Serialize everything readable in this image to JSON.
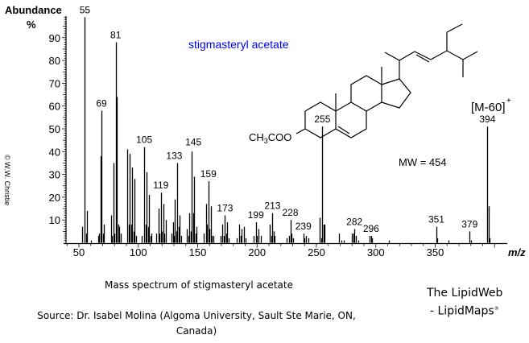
{
  "chart_data": {
    "type": "bar",
    "subtype": "mass-spectrum",
    "title": "stigmasteryl acetate",
    "xlabel": "m/z",
    "ylabel": "Abundance %",
    "xlim": [
      40,
      405
    ],
    "ylim": [
      0,
      100
    ],
    "x_ticks": [
      50,
      100,
      150,
      200,
      250,
      300,
      350
    ],
    "y_ticks": [
      10,
      20,
      30,
      40,
      50,
      60,
      70,
      80,
      90
    ],
    "grid": false,
    "peaks": [
      [
        53,
        7
      ],
      [
        55,
        99
      ],
      [
        56,
        4
      ],
      [
        57,
        14
      ],
      [
        60,
        1
      ],
      [
        66,
        3
      ],
      [
        67,
        4
      ],
      [
        68,
        38
      ],
      [
        69,
        58
      ],
      [
        70,
        4
      ],
      [
        71,
        8
      ],
      [
        77,
        12
      ],
      [
        78,
        3
      ],
      [
        79,
        35
      ],
      [
        80,
        4
      ],
      [
        81,
        88
      ],
      [
        82,
        64
      ],
      [
        83,
        8
      ],
      [
        84,
        7
      ],
      [
        85,
        4
      ],
      [
        91,
        41
      ],
      [
        92,
        8
      ],
      [
        93,
        39
      ],
      [
        94,
        8
      ],
      [
        95,
        33
      ],
      [
        96,
        5
      ],
      [
        97,
        28
      ],
      [
        98,
        3
      ],
      [
        103,
        3
      ],
      [
        105,
        42
      ],
      [
        106,
        8
      ],
      [
        107,
        31
      ],
      [
        108,
        7
      ],
      [
        109,
        21
      ],
      [
        110,
        3
      ],
      [
        111,
        4
      ],
      [
        115,
        4
      ],
      [
        117,
        15
      ],
      [
        118,
        4
      ],
      [
        119,
        22
      ],
      [
        120,
        5
      ],
      [
        121,
        17
      ],
      [
        122,
        4
      ],
      [
        123,
        10
      ],
      [
        128,
        4
      ],
      [
        129,
        9
      ],
      [
        130,
        3
      ],
      [
        131,
        19
      ],
      [
        132,
        5
      ],
      [
        133,
        35
      ],
      [
        134,
        7
      ],
      [
        135,
        12
      ],
      [
        136,
        3
      ],
      [
        141,
        6
      ],
      [
        142,
        3
      ],
      [
        143,
        13
      ],
      [
        144,
        5
      ],
      [
        145,
        40
      ],
      [
        146,
        13
      ],
      [
        147,
        29
      ],
      [
        148,
        4
      ],
      [
        149,
        7
      ],
      [
        155,
        4
      ],
      [
        157,
        17
      ],
      [
        158,
        8
      ],
      [
        159,
        27
      ],
      [
        160,
        6
      ],
      [
        161,
        16
      ],
      [
        162,
        3
      ],
      [
        163,
        3
      ],
      [
        169,
        3
      ],
      [
        171,
        8
      ],
      [
        172,
        3
      ],
      [
        173,
        12
      ],
      [
        174,
        4
      ],
      [
        175,
        9
      ],
      [
        176,
        2
      ],
      [
        183,
        2
      ],
      [
        185,
        8
      ],
      [
        186,
        3
      ],
      [
        187,
        6
      ],
      [
        189,
        7
      ],
      [
        190,
        2
      ],
      [
        197,
        3
      ],
      [
        199,
        9
      ],
      [
        200,
        3
      ],
      [
        201,
        6
      ],
      [
        203,
        3
      ],
      [
        211,
        8
      ],
      [
        212,
        3
      ],
      [
        213,
        13
      ],
      [
        214,
        5
      ],
      [
        215,
        3
      ],
      [
        225,
        2
      ],
      [
        227,
        3
      ],
      [
        228,
        10
      ],
      [
        229,
        4
      ],
      [
        230,
        2
      ],
      [
        239,
        4
      ],
      [
        240,
        2
      ],
      [
        241,
        3
      ],
      [
        243,
        2
      ],
      [
        253,
        11
      ],
      [
        254,
        2
      ],
      [
        255,
        51
      ],
      [
        256,
        8
      ],
      [
        257,
        8
      ],
      [
        269,
        4
      ],
      [
        271,
        1
      ],
      [
        273,
        1
      ],
      [
        280,
        4
      ],
      [
        281,
        4
      ],
      [
        282,
        6
      ],
      [
        283,
        3
      ],
      [
        285,
        1
      ],
      [
        295,
        3
      ],
      [
        296,
        3
      ],
      [
        297,
        2
      ],
      [
        311,
        1
      ],
      [
        351,
        7
      ],
      [
        352,
        2
      ],
      [
        361,
        1
      ],
      [
        379,
        5
      ],
      [
        380,
        1
      ],
      [
        394,
        51
      ],
      [
        395,
        16
      ],
      [
        396,
        2
      ]
    ],
    "labeled_peaks": [
      55,
      69,
      81,
      105,
      119,
      133,
      145,
      159,
      173,
      199,
      213,
      228,
      239,
      255,
      282,
      296,
      351,
      379,
      394
    ],
    "annotations": [
      {
        "text": "[M-60]",
        "superscript": "+",
        "at": 394
      },
      {
        "text": "MW = 454"
      },
      {
        "text": "CH3COO",
        "role": "structure-substituent"
      }
    ],
    "copyright_vertical": "© W.W. Christie",
    "title_color": "#0000ff"
  },
  "labels": {
    "y_axis_title": "Abundance",
    "y_axis_unit": "%",
    "x_axis_title": "m/z",
    "compound": "stigmasteryl acetate",
    "mw": "MW = 454",
    "m60": "[M-60]",
    "m60_sup": "+",
    "substituent_a": "CH",
    "substituent_sub": "3",
    "substituent_b": "COO",
    "copyright": "© W.W. Christie"
  },
  "captions": {
    "title": "Mass spectrum of stigmasteryl acetate",
    "source": "Source: Dr. Isabel Molina (Algoma University, Sault Ste Marie, ON, Canada)",
    "brand_line1": "The LipidWeb",
    "brand_line2": "- LipidMaps",
    "brand_mark": "®"
  }
}
